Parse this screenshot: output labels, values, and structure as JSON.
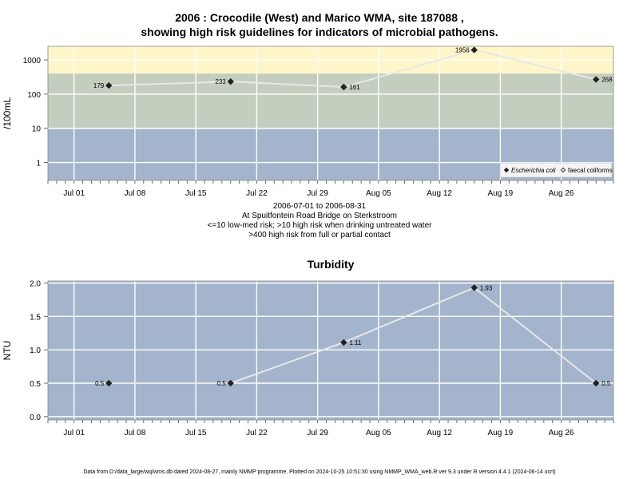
{
  "title": {
    "line1": "2006 : Crocodile (West) and Marico WMA, site 187088 ,",
    "line2": "showing high risk guidelines for indicators of microbial pathogens."
  },
  "captions": [
    "2006-07-01 to 2006-08-31",
    "At Spuitfontein Road Bridge on Sterkstroom",
    "<=10 low-med risk; >10 high risk when drinking untreated water",
    ">400 high risk from full or partial contact"
  ],
  "footer": "Data from D:/data_large/wq/wms.db dated 2024-08-27, mainly NMMP programme. Plotted on 2024-10-25 10:51:30 using NMMP_WMA_web.R ver 9.3 under R version 4.4.1 (2024-06-14 ucrt)",
  "colors": {
    "band_low": "#a3b4cc",
    "band_mid": "#c4cebf",
    "band_high": "#fef6c8",
    "line": "#e8e8e8",
    "grid": "#ffffff"
  },
  "chart_data": [
    {
      "type": "line",
      "title": "",
      "ylabel": "/100mL",
      "yscale": "log",
      "yticks": [
        "1",
        "10",
        "100",
        "1000"
      ],
      "xticks": [
        "Jul 01",
        "Jul 08",
        "Jul 15",
        "Jul 22",
        "Jul 29",
        "Aug 05",
        "Aug 12",
        "Aug 19",
        "Aug 26"
      ],
      "xlim": [
        "2006-06-28",
        "2006-09-01"
      ],
      "bands": [
        {
          "from": 0,
          "to": 10,
          "color": "#a3b4cc"
        },
        {
          "from": 10,
          "to": 400,
          "color": "#c4cebf"
        },
        {
          "from": 400,
          "to": 3000,
          "color": "#fef6c8"
        }
      ],
      "legend": {
        "position": "bottom-right",
        "entries": [
          {
            "label": "Escherichia coli",
            "marker": "filled-diamond"
          },
          {
            "label": "faecal coliforms",
            "marker": "open-diamond"
          }
        ]
      },
      "series": [
        {
          "name": "Escherichia coli",
          "x": [
            "2006-07-05",
            "2006-07-19",
            "2006-08-01",
            "2006-08-16",
            "2006-08-30"
          ],
          "values": [
            179,
            233,
            161,
            1956,
            268
          ],
          "labels": [
            "179",
            "233",
            "161",
            "1956",
            "268"
          ]
        }
      ]
    },
    {
      "type": "line",
      "title": "Turbidity",
      "ylabel": "NTU",
      "yticks": [
        "0.0",
        "0.5",
        "1.0",
        "1.5",
        "2.0"
      ],
      "ylim": [
        0,
        2
      ],
      "xticks": [
        "Jul 01",
        "Jul 08",
        "Jul 15",
        "Jul 22",
        "Jul 29",
        "Aug 05",
        "Aug 12",
        "Aug 19",
        "Aug 26"
      ],
      "xlim": [
        "2006-06-28",
        "2006-09-01"
      ],
      "series": [
        {
          "name": "",
          "x": [
            "2006-07-05",
            "2006-07-19",
            "2006-08-01",
            "2006-08-16",
            "2006-08-30"
          ],
          "values": [
            0.5,
            0.5,
            1.11,
            1.93,
            0.5
          ],
          "labels": [
            "0.5",
            "0.5",
            "1.11",
            "1.93",
            "0.5"
          ]
        }
      ]
    }
  ]
}
